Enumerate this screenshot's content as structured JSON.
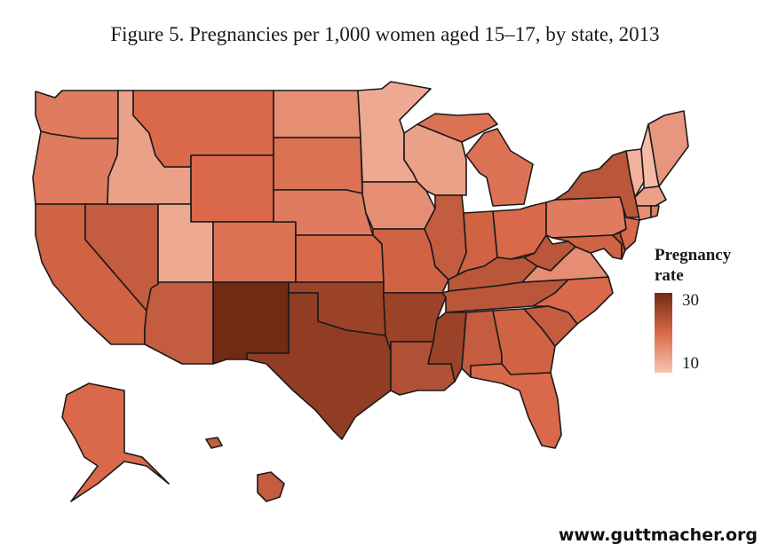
{
  "title": "Figure 5. Pregnancies per 1,000 women aged 15–17, by state, 2013",
  "legend": {
    "title_line1": "Pregnancy",
    "title_line2": "rate",
    "max_label": "30",
    "min_label": "10",
    "min_value": 10,
    "max_value": 30,
    "low_color": "#f7c5b1",
    "high_color": "#722a12"
  },
  "source": "www.guttmacher.org",
  "map_data": {
    "type": "choropleth",
    "states": [
      {
        "id": "WA",
        "rate": 18
      },
      {
        "id": "OR",
        "rate": 18
      },
      {
        "id": "CA",
        "rate": 21
      },
      {
        "id": "NV",
        "rate": 22
      },
      {
        "id": "ID",
        "rate": 14
      },
      {
        "id": "MT",
        "rate": 20
      },
      {
        "id": "WY",
        "rate": 20
      },
      {
        "id": "UT",
        "rate": 13
      },
      {
        "id": "AZ",
        "rate": 22
      },
      {
        "id": "CO",
        "rate": 19
      },
      {
        "id": "NM",
        "rate": 30
      },
      {
        "id": "ND",
        "rate": 16
      },
      {
        "id": "SD",
        "rate": 19
      },
      {
        "id": "NE",
        "rate": 18
      },
      {
        "id": "KS",
        "rate": 20
      },
      {
        "id": "OK",
        "rate": 26
      },
      {
        "id": "TX",
        "rate": 27
      },
      {
        "id": "MN",
        "rate": 13
      },
      {
        "id": "IA",
        "rate": 16
      },
      {
        "id": "MO",
        "rate": 21
      },
      {
        "id": "AR",
        "rate": 26
      },
      {
        "id": "LA",
        "rate": 24
      },
      {
        "id": "WI",
        "rate": 14
      },
      {
        "id": "IL",
        "rate": 22
      },
      {
        "id": "MI",
        "rate": 19
      },
      {
        "id": "IN",
        "rate": 21
      },
      {
        "id": "OH",
        "rate": 20
      },
      {
        "id": "KY",
        "rate": 23
      },
      {
        "id": "TN",
        "rate": 23
      },
      {
        "id": "MS",
        "rate": 26
      },
      {
        "id": "AL",
        "rate": 22
      },
      {
        "id": "GA",
        "rate": 21
      },
      {
        "id": "FL",
        "rate": 20
      },
      {
        "id": "SC",
        "rate": 22
      },
      {
        "id": "NC",
        "rate": 20
      },
      {
        "id": "VA",
        "rate": 16
      },
      {
        "id": "WV",
        "rate": 23
      },
      {
        "id": "PA",
        "rate": 18
      },
      {
        "id": "NY",
        "rate": 23
      },
      {
        "id": "VT",
        "rate": 12
      },
      {
        "id": "NH",
        "rate": 11
      },
      {
        "id": "ME",
        "rate": 15
      },
      {
        "id": "MA",
        "rate": 14
      },
      {
        "id": "CT",
        "rate": 16
      },
      {
        "id": "RI",
        "rate": 18
      },
      {
        "id": "NJ",
        "rate": 20
      },
      {
        "id": "DE",
        "rate": 23
      },
      {
        "id": "MD",
        "rate": 21
      },
      {
        "id": "AK",
        "rate": 20
      },
      {
        "id": "HI",
        "rate": 22
      }
    ]
  }
}
